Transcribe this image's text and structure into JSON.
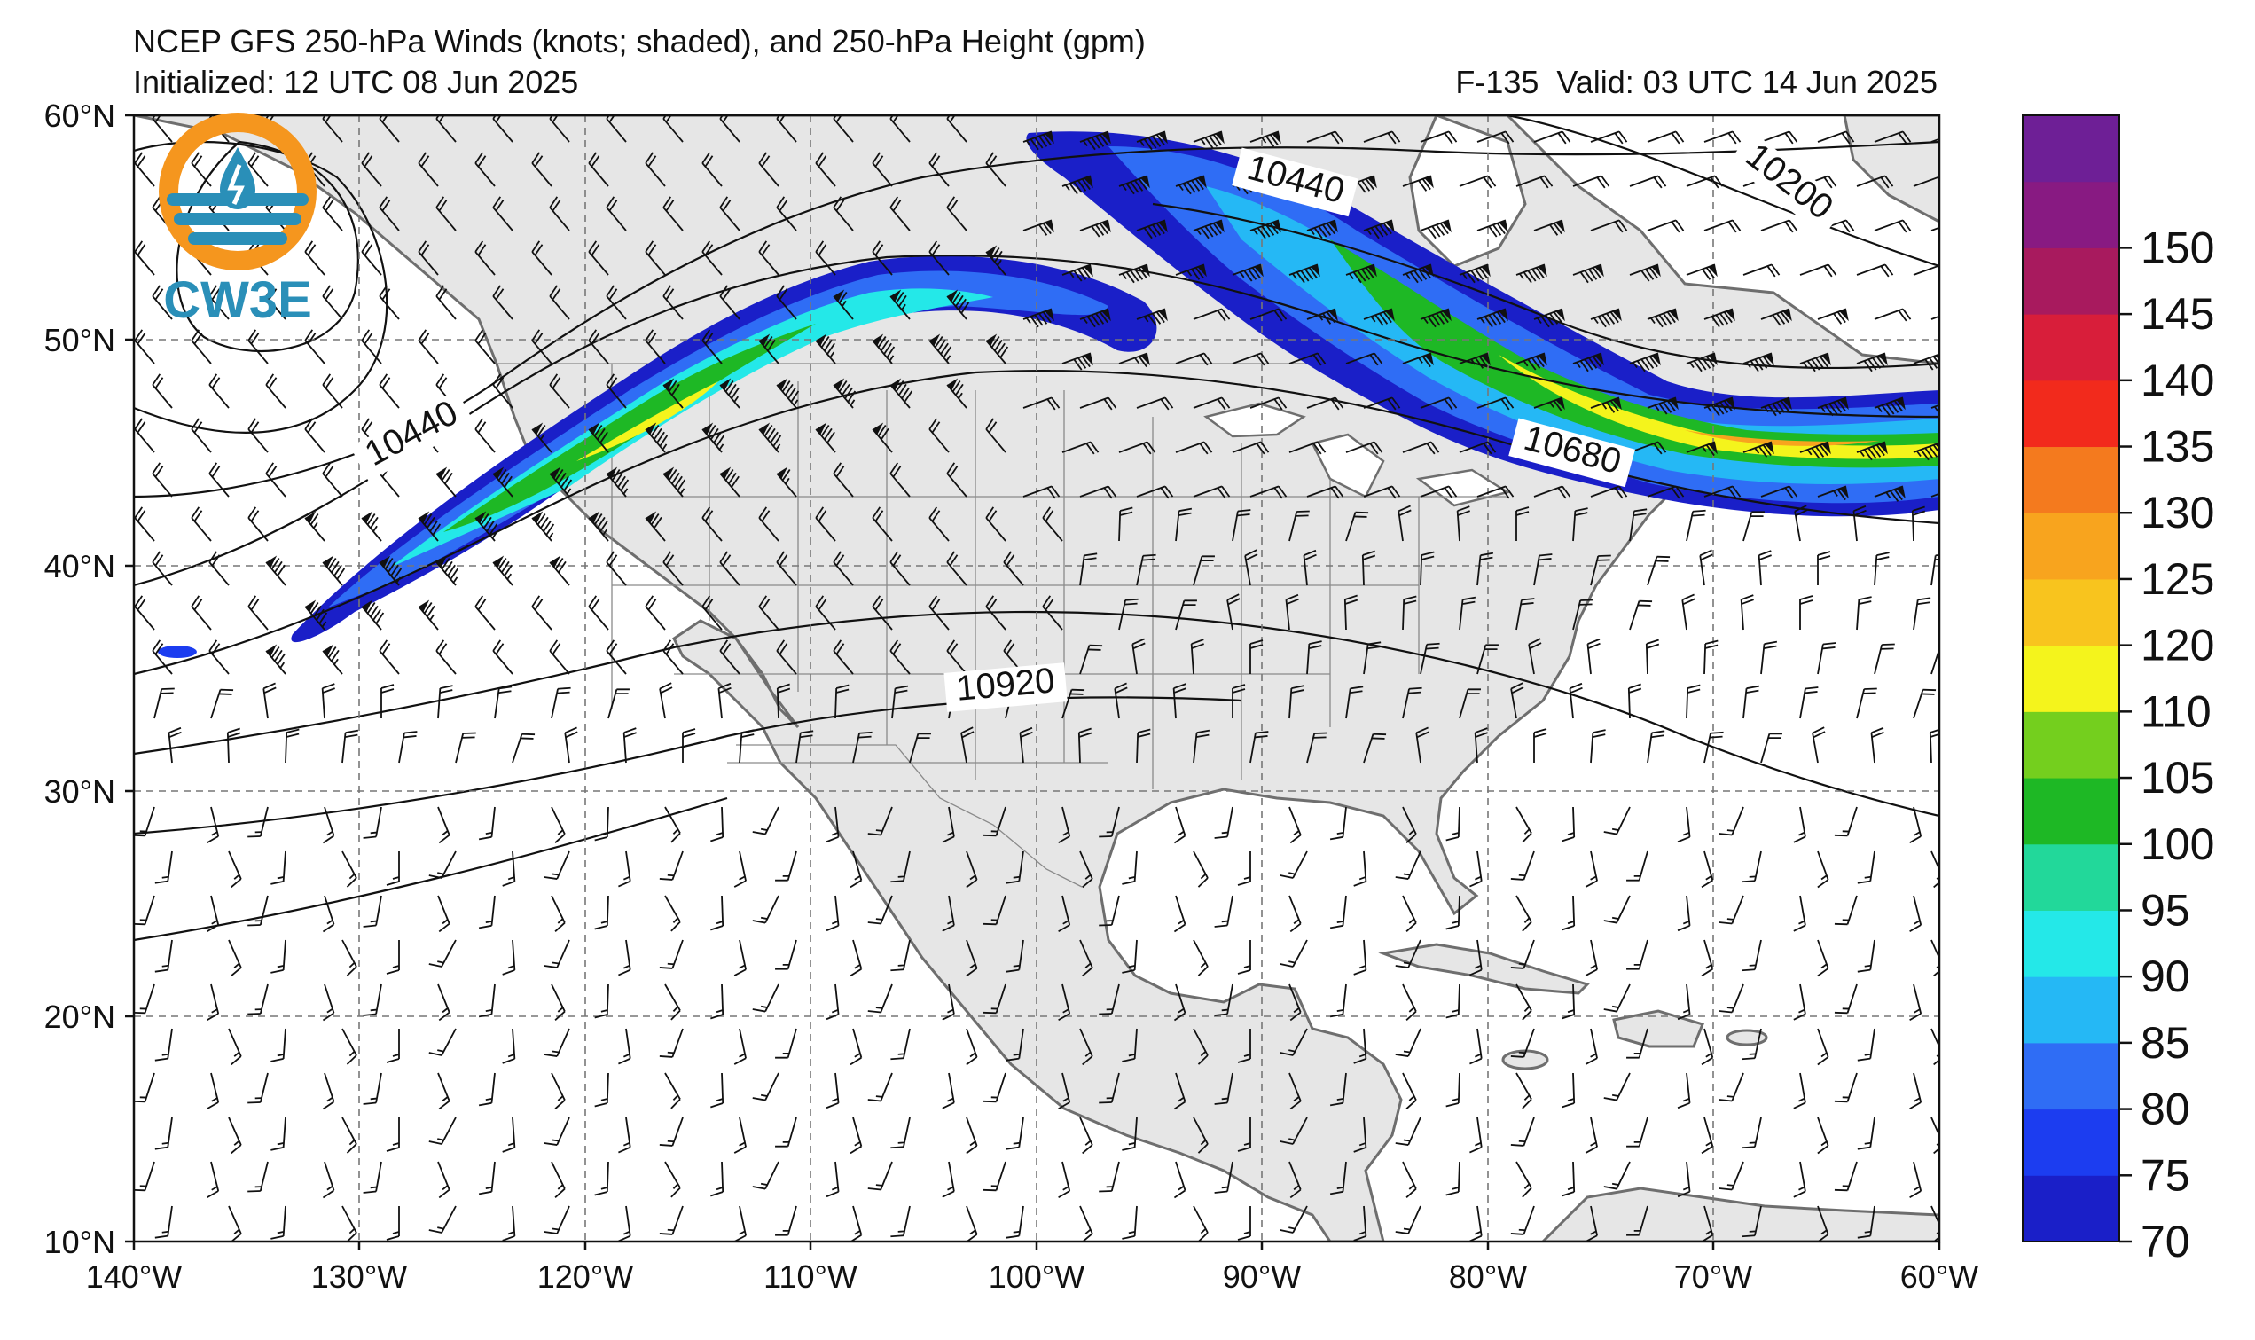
{
  "header": {
    "title": "NCEP GFS 250-hPa Winds (knots; shaded), and 250-hPa Height (gpm)",
    "initialized": "Initialized: 12 UTC 08 Jun 2025",
    "valid": "F-135  Valid: 03 UTC 14 Jun 2025"
  },
  "logo": {
    "text": "CW3E",
    "colors": {
      "orange": "#f5961e",
      "blue": "#2a8fb8"
    }
  },
  "map": {
    "lat_labels": [
      "60°N",
      "50°N",
      "40°N",
      "30°N",
      "20°N",
      "10°N"
    ],
    "lon_labels": [
      "140°W",
      "130°W",
      "120°W",
      "110°W",
      "100°W",
      "90°W",
      "80°W",
      "70°W",
      "60°W"
    ],
    "lat_range": [
      10,
      60
    ],
    "lon_range": [
      -140,
      -60
    ],
    "grid": "dashed",
    "land_color": "#e6e6e6",
    "coast_color": "#6e6e6e",
    "contour_labels": [
      "10440",
      "10440",
      "10200",
      "10680",
      "10920"
    ]
  },
  "colorbar": {
    "ticks": [
      "70",
      "75",
      "80",
      "85",
      "90",
      "95",
      "100",
      "105",
      "110",
      "120",
      "125",
      "130",
      "135",
      "140",
      "145",
      "150"
    ],
    "colors": [
      "#1a1fc8",
      "#1c3df0",
      "#2f6df5",
      "#25b8f5",
      "#24e8e8",
      "#22d89a",
      "#1eb825",
      "#74cf1e",
      "#f4f41c",
      "#f8c41e",
      "#f8a41e",
      "#f47a1e",
      "#f22a1c",
      "#d81e3a",
      "#a81a5e",
      "#881a82",
      "#6e1f96"
    ]
  }
}
